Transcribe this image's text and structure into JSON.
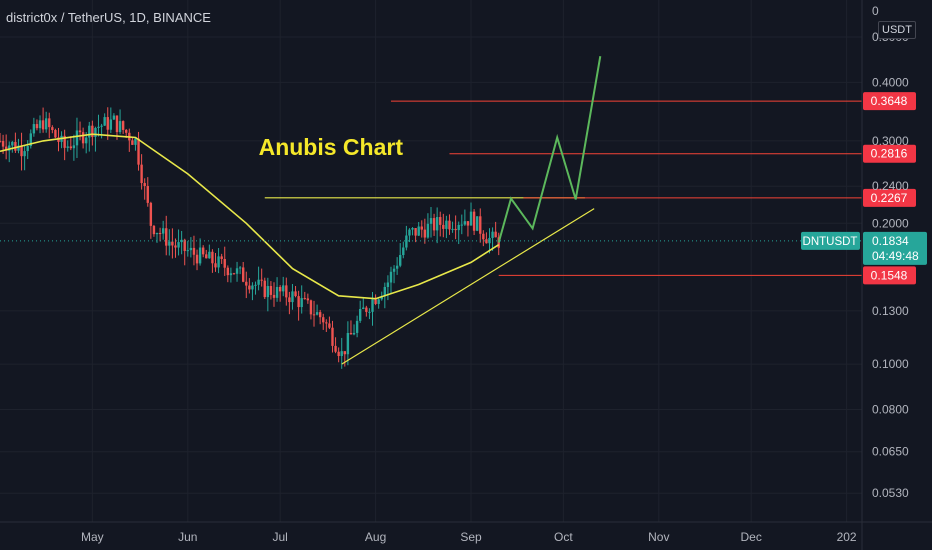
{
  "header": {
    "title": "district0x / TetherUS, 1D, BINANCE",
    "currency": "USDT"
  },
  "colors": {
    "background": "#131722",
    "candle_up": "#26a69a",
    "candle_down": "#ef5350",
    "moving_average": "#e8e84a",
    "drawing_yellow": "#e8e84a",
    "drawing_green": "#5cb85c",
    "level_line": "#f44336",
    "label_red": "#f23645",
    "label_teal": "#26a69a",
    "annotation_text": "#f5e82a"
  },
  "chart_data": {
    "type": "candlestick",
    "symbol": "DNTUSDT",
    "scale": "log",
    "ylim": [
      0.046,
      0.6
    ],
    "y_ticks": [
      {
        "value": 0.5,
        "label": "0.5000"
      },
      {
        "value": 0.4,
        "label": "0.4000"
      },
      {
        "value": 0.3,
        "label": "0.3000"
      },
      {
        "value": 0.24,
        "label": "0.2400"
      },
      {
        "value": 0.2,
        "label": "0.2000"
      },
      {
        "value": 0.13,
        "label": "0.1300"
      },
      {
        "value": 0.1,
        "label": "0.1000"
      },
      {
        "value": 0.08,
        "label": "0.0800"
      },
      {
        "value": 0.065,
        "label": "0.0650"
      },
      {
        "value": 0.053,
        "label": "0.0530"
      }
    ],
    "x_range": [
      "2021-04-01",
      "2022-01-06"
    ],
    "x_ticks": [
      {
        "date": "2021-05-01",
        "label": "May"
      },
      {
        "date": "2021-06-01",
        "label": "Jun"
      },
      {
        "date": "2021-07-01",
        "label": "Jul"
      },
      {
        "date": "2021-08-01",
        "label": "Aug"
      },
      {
        "date": "2021-09-01",
        "label": "Sep"
      },
      {
        "date": "2021-10-01",
        "label": "Oct"
      },
      {
        "date": "2021-11-01",
        "label": "Nov"
      },
      {
        "date": "2021-12-01",
        "label": "Dec"
      },
      {
        "date": "2022-01-01",
        "label": "202"
      }
    ],
    "price_path": [
      {
        "date": "2021-04-01",
        "price": 0.3
      },
      {
        "date": "2021-04-08",
        "price": 0.29
      },
      {
        "date": "2021-04-15",
        "price": 0.33
      },
      {
        "date": "2021-04-22",
        "price": 0.29
      },
      {
        "date": "2021-05-01",
        "price": 0.32
      },
      {
        "date": "2021-05-08",
        "price": 0.33
      },
      {
        "date": "2021-05-15",
        "price": 0.3
      },
      {
        "date": "2021-05-20",
        "price": 0.2
      },
      {
        "date": "2021-05-27",
        "price": 0.18
      },
      {
        "date": "2021-06-05",
        "price": 0.17
      },
      {
        "date": "2021-06-15",
        "price": 0.16
      },
      {
        "date": "2021-06-25",
        "price": 0.145
      },
      {
        "date": "2021-07-05",
        "price": 0.14
      },
      {
        "date": "2021-07-15",
        "price": 0.125
      },
      {
        "date": "2021-07-21",
        "price": 0.105
      },
      {
        "date": "2021-07-28",
        "price": 0.13
      },
      {
        "date": "2021-08-05",
        "price": 0.15
      },
      {
        "date": "2021-08-12",
        "price": 0.19
      },
      {
        "date": "2021-08-22",
        "price": 0.2
      },
      {
        "date": "2021-09-01",
        "price": 0.205
      },
      {
        "date": "2021-09-07",
        "price": 0.185
      },
      {
        "date": "2021-09-10",
        "price": 0.1834
      }
    ],
    "moving_average": [
      {
        "date": "2021-04-01",
        "price": 0.285
      },
      {
        "date": "2021-04-15",
        "price": 0.3
      },
      {
        "date": "2021-05-01",
        "price": 0.31
      },
      {
        "date": "2021-05-15",
        "price": 0.305
      },
      {
        "date": "2021-06-01",
        "price": 0.255
      },
      {
        "date": "2021-06-20",
        "price": 0.2
      },
      {
        "date": "2021-07-05",
        "price": 0.16
      },
      {
        "date": "2021-07-20",
        "price": 0.14
      },
      {
        "date": "2021-08-01",
        "price": 0.138
      },
      {
        "date": "2021-08-15",
        "price": 0.148
      },
      {
        "date": "2021-09-01",
        "price": 0.165
      },
      {
        "date": "2021-09-10",
        "price": 0.18
      }
    ],
    "levels": [
      {
        "value": 0.3648,
        "label": "0.3648",
        "from": "2021-08-06"
      },
      {
        "value": 0.2816,
        "label": "0.2816",
        "from": "2021-08-25"
      },
      {
        "value": 0.2267,
        "label": "0.2267",
        "from": "2021-09-18"
      },
      {
        "value": 0.1548,
        "label": "0.1548",
        "from": "2021-09-10"
      }
    ],
    "resistance_line": {
      "value": 0.2267,
      "from": "2021-06-26",
      "to": "2021-10-08"
    },
    "trendline": {
      "from": {
        "date": "2021-07-21",
        "price": 0.1
      },
      "to": {
        "date": "2021-10-11",
        "price": 0.215
      }
    },
    "projection": [
      {
        "date": "2021-09-10",
        "price": 0.182
      },
      {
        "date": "2021-09-14",
        "price": 0.226
      },
      {
        "date": "2021-09-21",
        "price": 0.195
      },
      {
        "date": "2021-09-29",
        "price": 0.305
      },
      {
        "date": "2021-10-05",
        "price": 0.225
      },
      {
        "date": "2021-10-13",
        "price": 0.455
      }
    ],
    "annotation": {
      "text": "Anubis Chart",
      "date": "2021-06-24",
      "price": 0.28
    },
    "current": {
      "symbol": "DNTUSDT",
      "price": 0.1834,
      "label": "0.1834",
      "countdown": "04:49:48"
    },
    "top_tick_partial": "0"
  }
}
